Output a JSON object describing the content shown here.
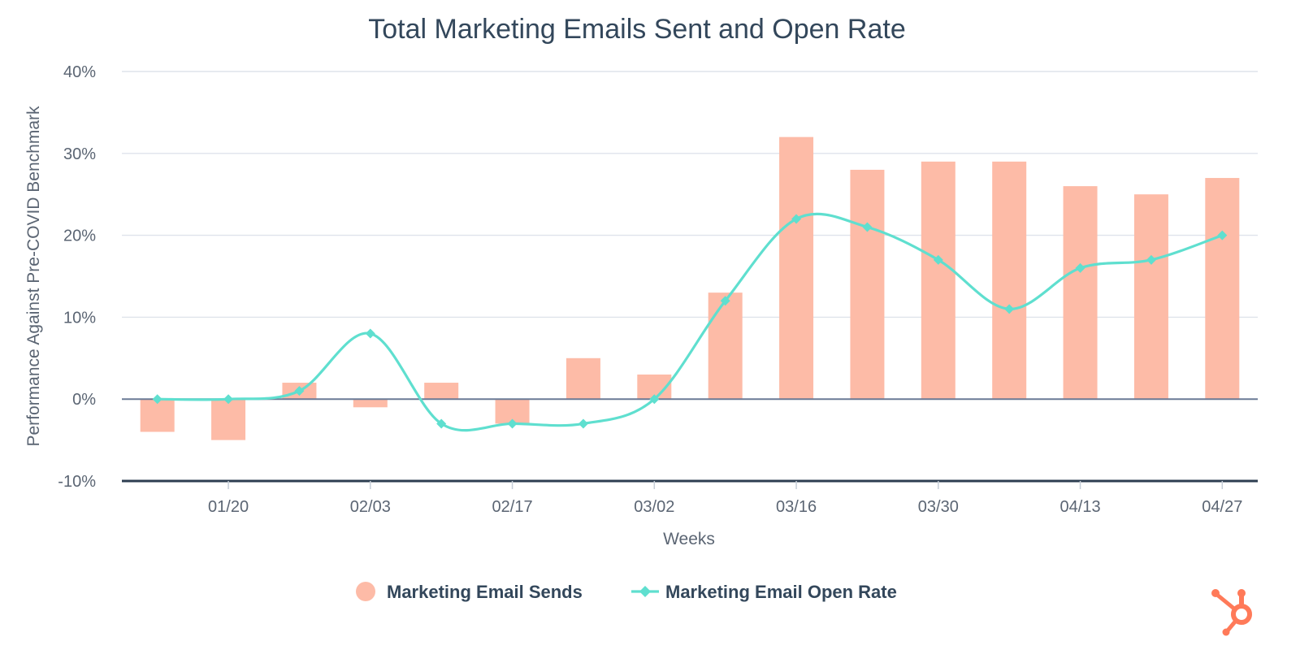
{
  "chart_data": {
    "type": "bar",
    "title": "Total Marketing Emails Sent and Open Rate",
    "xlabel": "Weeks",
    "ylabel": "Performance Against Pre-COVID Benchmark",
    "ylim": [
      -10,
      40
    ],
    "y_ticks": [
      40,
      30,
      20,
      10,
      0,
      -10
    ],
    "y_tick_labels": [
      "40%",
      "30%",
      "20%",
      "10%",
      "0%",
      "-10%"
    ],
    "x_tick_labels": [
      "01/20",
      "02/03",
      "02/17",
      "03/02",
      "03/16",
      "03/30",
      "04/13",
      "04/27"
    ],
    "x_tick_label_category_indices": [
      1,
      3,
      5,
      7,
      9,
      11,
      13,
      15
    ],
    "grid": true,
    "legend_position": "bottom-center",
    "series": [
      {
        "name": "Marketing Email Sends",
        "type": "bar",
        "color": "#fdbba7",
        "values": [
          -4,
          -5,
          2,
          -1,
          2,
          -3,
          5,
          3,
          13,
          32,
          28,
          29,
          29,
          26,
          25,
          27
        ]
      },
      {
        "name": "Marketing Email Open Rate",
        "type": "line",
        "color": "#5fdfcf",
        "values": [
          0,
          0,
          1,
          8,
          -3,
          -3,
          -3,
          0,
          12,
          22,
          21,
          17,
          11,
          16,
          17,
          20
        ]
      }
    ]
  },
  "colors": {
    "title": "#33475b",
    "text": "#5b6573",
    "grid": "#dfe3eb",
    "zero_line": "#6a7a96",
    "bottom_axis": "#2d3e50",
    "logo": "#ff7a59"
  },
  "logo": {
    "name": "hubspot-sprocket-icon"
  }
}
